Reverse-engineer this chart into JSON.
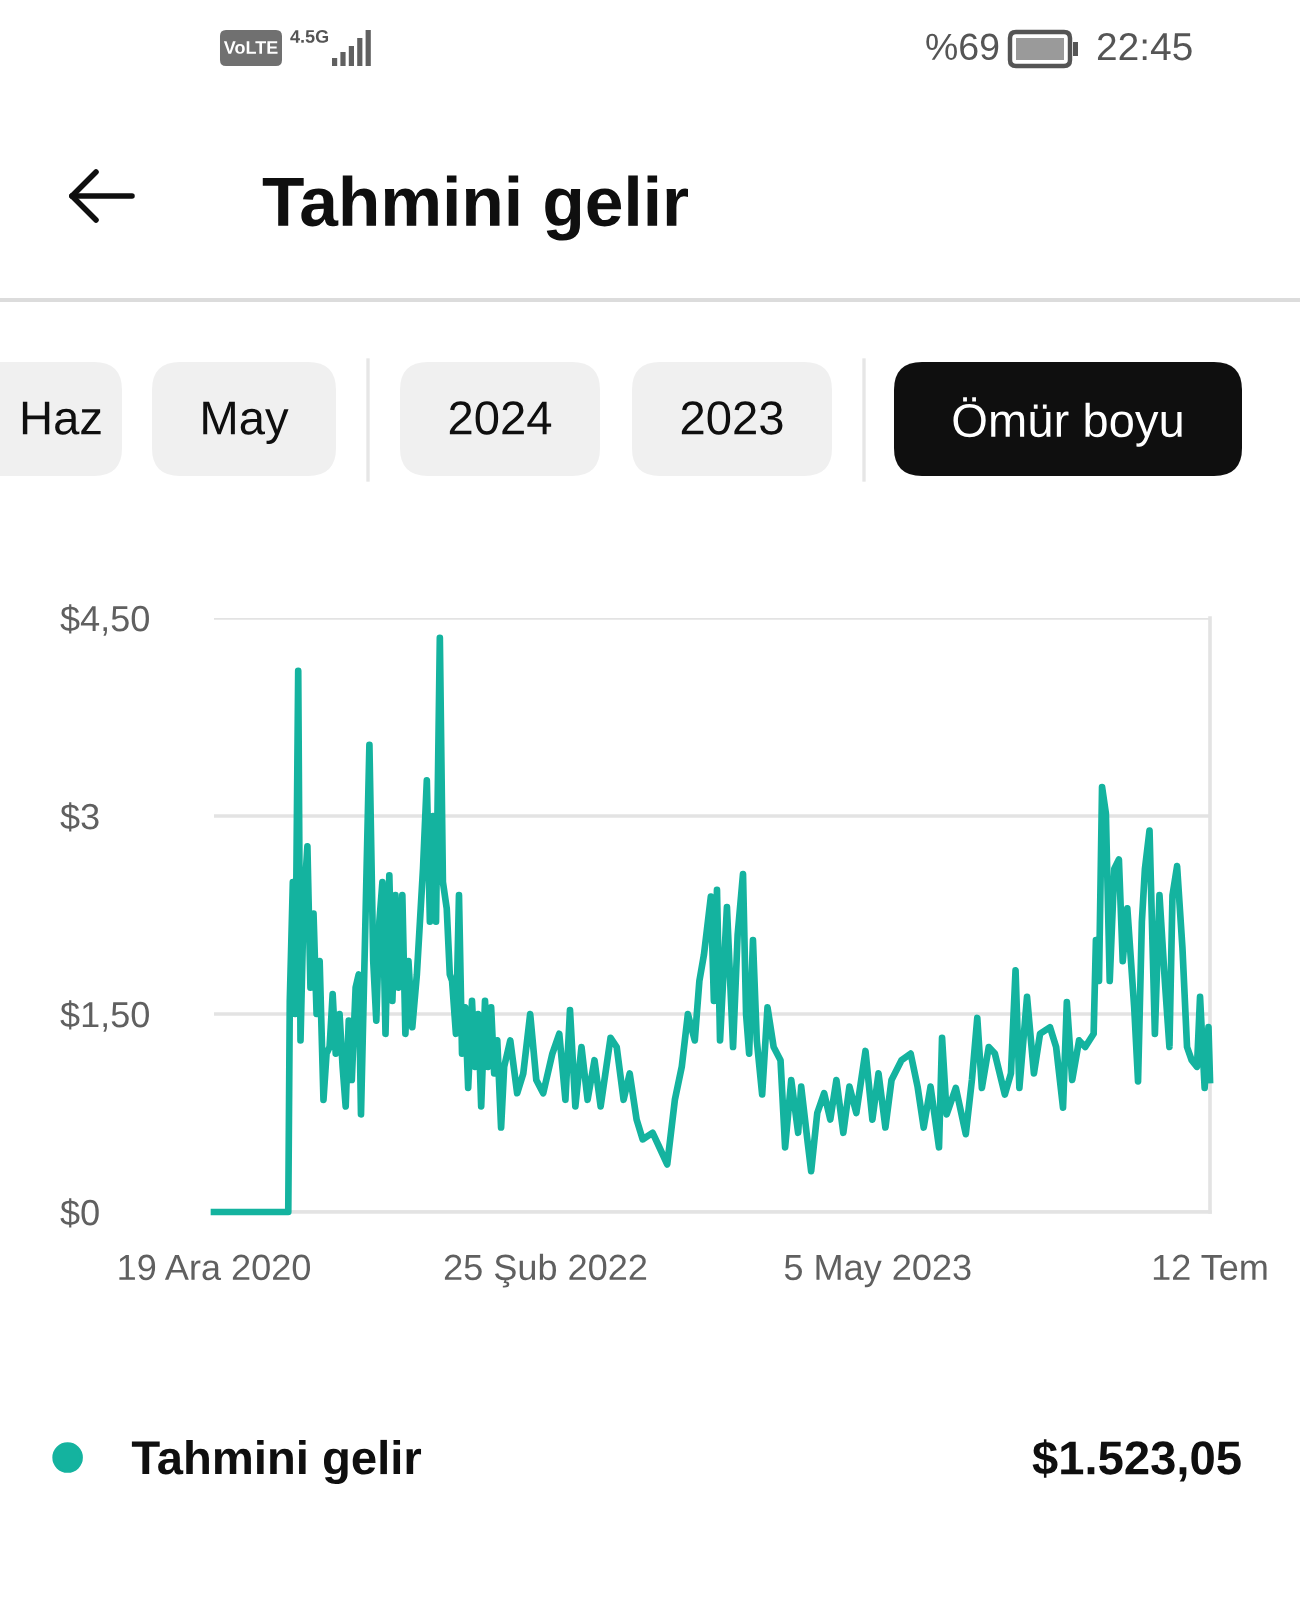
{
  "chart_data": {
    "type": "line",
    "title": "Tahmini gelir",
    "x": [
      "2020-12-19",
      "2021-03-26",
      "2021-03-28",
      "2021-04-01",
      "2021-04-04",
      "2021-04-08",
      "2021-04-11",
      "2021-04-15",
      "2021-04-20",
      "2021-04-24",
      "2021-04-28",
      "2021-05-02",
      "2021-05-06",
      "2021-05-11",
      "2021-05-15",
      "2021-05-19",
      "2021-05-23",
      "2021-05-27",
      "2021-06-01",
      "2021-06-05",
      "2021-06-09",
      "2021-06-13",
      "2021-06-17",
      "2021-06-22",
      "2021-06-26",
      "2021-06-29",
      "2021-07-04",
      "2021-07-10",
      "2021-07-15",
      "2021-07-19",
      "2021-07-23",
      "2021-07-27",
      "2021-07-31",
      "2021-08-05",
      "2021-08-09",
      "2021-08-13",
      "2021-08-17",
      "2021-08-22",
      "2021-08-26",
      "2021-08-30",
      "2021-09-04",
      "2021-09-10",
      "2021-09-14",
      "2021-09-18",
      "2021-09-23",
      "2021-09-27",
      "2021-10-01",
      "2021-10-05",
      "2021-10-10",
      "2021-10-14",
      "2021-10-19",
      "2021-10-23",
      "2021-10-26",
      "2021-10-31",
      "2021-11-04",
      "2021-11-08",
      "2021-11-12",
      "2021-11-16",
      "2021-11-21",
      "2021-11-25",
      "2021-11-29",
      "2021-12-03",
      "2021-12-08",
      "2021-12-12",
      "2021-12-16",
      "2021-12-20",
      "2021-12-24",
      "2021-12-29",
      "2022-01-02",
      "2022-01-10",
      "2022-01-19",
      "2022-01-27",
      "2022-02-05",
      "2022-02-13",
      "2022-02-22",
      "2022-03-06",
      "2022-03-15",
      "2022-03-23",
      "2022-03-29",
      "2022-04-05",
      "2022-04-13",
      "2022-04-21",
      "2022-04-30",
      "2022-05-08",
      "2022-05-21",
      "2022-05-29",
      "2022-06-07",
      "2022-06-15",
      "2022-06-24",
      "2022-07-02",
      "2022-07-15",
      "2022-07-23",
      "2022-08-03",
      "2022-08-13",
      "2022-08-22",
      "2022-08-30",
      "2022-09-08",
      "2022-09-14",
      "2022-09-20",
      "2022-09-29",
      "2022-10-03",
      "2022-10-07",
      "2022-10-11",
      "2022-10-20",
      "2022-10-28",
      "2022-11-03",
      "2022-11-10",
      "2022-11-14",
      "2022-11-18",
      "2022-11-23",
      "2022-11-28",
      "2022-12-05",
      "2022-12-12",
      "2022-12-20",
      "2022-12-29",
      "2023-01-04",
      "2023-01-12",
      "2023-01-21",
      "2023-01-25",
      "2023-02-02",
      "2023-02-07",
      "2023-02-15",
      "2023-02-24",
      "2023-03-04",
      "2023-03-12",
      "2023-03-21",
      "2023-03-29",
      "2023-04-07",
      "2023-04-19",
      "2023-04-28",
      "2023-05-06",
      "2023-05-15",
      "2023-05-23",
      "2023-06-05",
      "2023-06-17",
      "2023-06-26",
      "2023-07-04",
      "2023-07-13",
      "2023-07-24",
      "2023-07-28",
      "2023-08-03",
      "2023-08-15",
      "2023-08-28",
      "2023-09-05",
      "2023-09-12",
      "2023-09-18",
      "2023-09-27",
      "2023-10-05",
      "2023-10-18",
      "2023-10-26",
      "2023-11-01",
      "2023-11-06",
      "2023-11-16",
      "2023-11-25",
      "2023-12-03",
      "2023-12-16",
      "2023-12-24",
      "2024-01-02",
      "2024-01-07",
      "2024-01-14",
      "2024-01-23",
      "2024-01-31",
      "2024-02-11",
      "2024-02-14",
      "2024-02-18",
      "2024-02-22",
      "2024-02-27",
      "2024-03-03",
      "2024-03-09",
      "2024-03-15",
      "2024-03-20",
      "2024-03-26",
      "2024-04-04",
      "2024-04-09",
      "2024-04-14",
      "2024-04-18",
      "2024-04-24",
      "2024-05-01",
      "2024-05-07",
      "2024-05-14",
      "2024-05-20",
      "2024-05-24",
      "2024-05-30",
      "2024-06-06",
      "2024-06-12",
      "2024-06-18",
      "2024-06-25",
      "2024-06-29",
      "2024-07-05",
      "2024-07-10",
      "2024-07-12"
    ],
    "series": [
      {
        "name": "Tahmini gelir",
        "color": "#14b39f",
        "values": [
          0,
          0,
          1.6,
          2.5,
          1.5,
          4.1,
          1.3,
          2.3,
          2.77,
          1.7,
          2.26,
          1.5,
          1.9,
          0.85,
          1.2,
          1.25,
          1.65,
          1.2,
          1.5,
          1.1,
          0.8,
          1.45,
          1.0,
          1.7,
          1.8,
          0.74,
          2.0,
          3.54,
          1.9,
          1.45,
          2.2,
          2.5,
          1.35,
          2.55,
          1.6,
          2.4,
          1.7,
          2.4,
          1.35,
          1.9,
          1.4,
          1.8,
          2.2,
          2.6,
          3.27,
          2.2,
          3.0,
          2.2,
          4.35,
          2.5,
          2.3,
          1.8,
          1.75,
          1.35,
          2.4,
          1.2,
          1.55,
          0.94,
          1.6,
          1.1,
          1.5,
          0.8,
          1.6,
          1.1,
          1.55,
          1.05,
          1.3,
          0.64,
          1.1,
          1.3,
          0.9,
          1.05,
          1.5,
          1.0,
          0.9,
          1.2,
          1.35,
          0.85,
          1.53,
          0.8,
          1.25,
          0.85,
          1.15,
          0.8,
          1.32,
          1.25,
          0.85,
          1.05,
          0.7,
          0.55,
          0.6,
          0.5,
          0.36,
          0.85,
          1.1,
          1.5,
          1.3,
          1.75,
          1.95,
          2.39,
          1.6,
          2.44,
          1.3,
          2.31,
          1.25,
          2.1,
          2.56,
          1.5,
          1.2,
          2.06,
          1.3,
          0.89,
          1.55,
          1.25,
          1.15,
          0.49,
          1.0,
          0.6,
          0.95,
          0.55,
          0.31,
          0.75,
          0.9,
          0.7,
          1.0,
          0.6,
          0.95,
          0.75,
          1.22,
          0.7,
          1.05,
          0.64,
          1.0,
          1.15,
          1.2,
          0.95,
          0.64,
          0.95,
          0.49,
          1.32,
          0.74,
          0.94,
          0.59,
          1.0,
          1.47,
          0.94,
          1.25,
          1.2,
          0.89,
          1.05,
          1.83,
          0.94,
          1.63,
          1.05,
          1.35,
          1.4,
          1.25,
          0.79,
          1.59,
          1.0,
          1.3,
          1.25,
          1.35,
          2.06,
          1.75,
          3.22,
          3.02,
          1.75,
          2.6,
          2.67,
          1.9,
          2.3,
          1.55,
          0.99,
          2.2,
          2.6,
          2.89,
          1.35,
          2.4,
          1.75,
          1.25,
          2.4,
          2.62,
          2.0,
          1.25,
          1.15,
          1.1,
          1.63,
          0.94,
          1.4,
          1.0
        ]
      }
    ],
    "xlim": [
      "2020-12-19",
      "2024-07-12"
    ],
    "xticks": [
      {
        "value": "2020-12-19",
        "label": "19 Ara 2020"
      },
      {
        "value": "2022-02-25",
        "label": "25 Şub 2022"
      },
      {
        "value": "2023-05-05",
        "label": "5 May 2023"
      },
      {
        "value": "2024-07-12",
        "label": "12 Tem"
      }
    ],
    "ylim": [
      0,
      4.5
    ],
    "yticks": [
      {
        "value": 0,
        "label": "$0"
      },
      {
        "value": 1.5,
        "label": "$1,50"
      },
      {
        "value": 3,
        "label": "$3"
      },
      {
        "value": 4.5,
        "label": "$4,50"
      }
    ],
    "grid": "y",
    "legend": "bottom",
    "annotations": [
      "VoLTE",
      "4.5G",
      "%69",
      "22:45",
      "Haz",
      "May",
      "2024",
      "2023",
      "Ömür boyu",
      "$1.523,05"
    ]
  }
}
